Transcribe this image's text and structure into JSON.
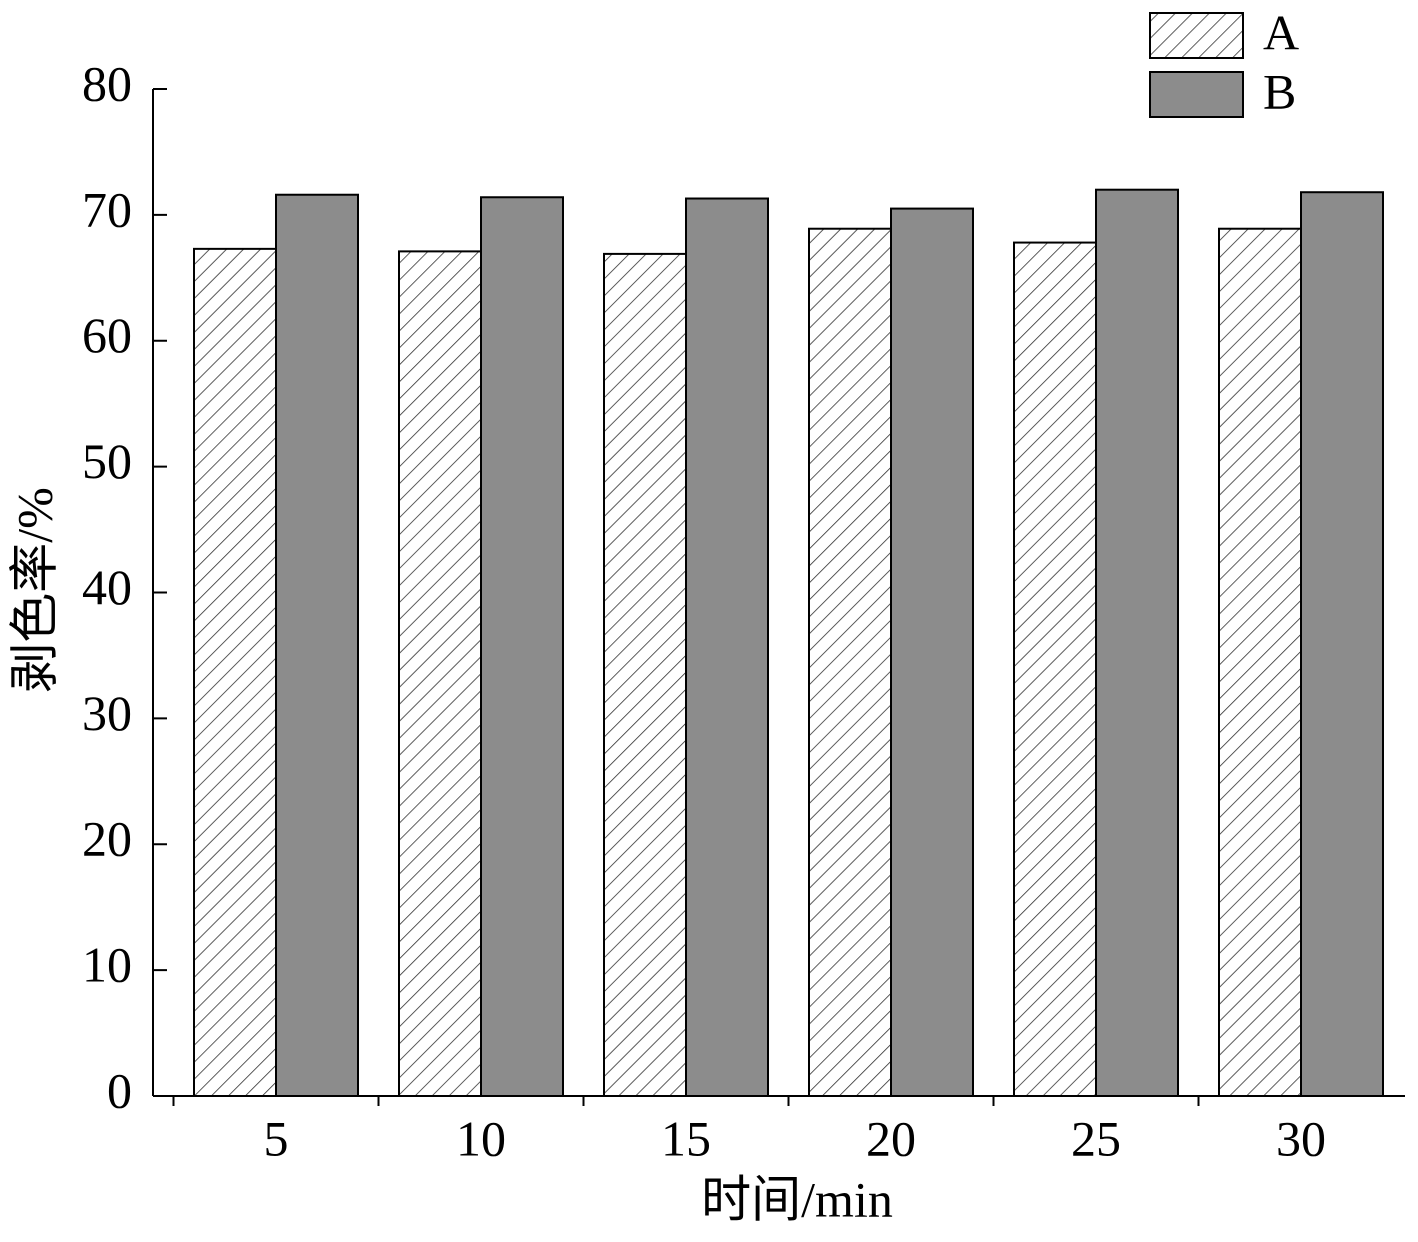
{
  "chart_data": {
    "type": "bar",
    "xlabel": "时间/min",
    "ylabel": "剥色率/%",
    "categories": [
      "5",
      "10",
      "15",
      "20",
      "25",
      "30"
    ],
    "series": [
      {
        "name": "A",
        "color": "#ffffff",
        "hatch": "diagonal",
        "values": [
          67.3,
          67.1,
          66.9,
          68.9,
          67.8,
          68.9
        ]
      },
      {
        "name": "B",
        "color": "#8c8c8c",
        "values": [
          71.6,
          71.4,
          71.3,
          70.5,
          72.0,
          71.8
        ]
      }
    ],
    "ylim": [
      0,
      80
    ],
    "yticks": [
      0,
      10,
      20,
      30,
      40,
      50,
      60,
      70,
      80
    ],
    "grid": false,
    "legend": "top-right"
  }
}
